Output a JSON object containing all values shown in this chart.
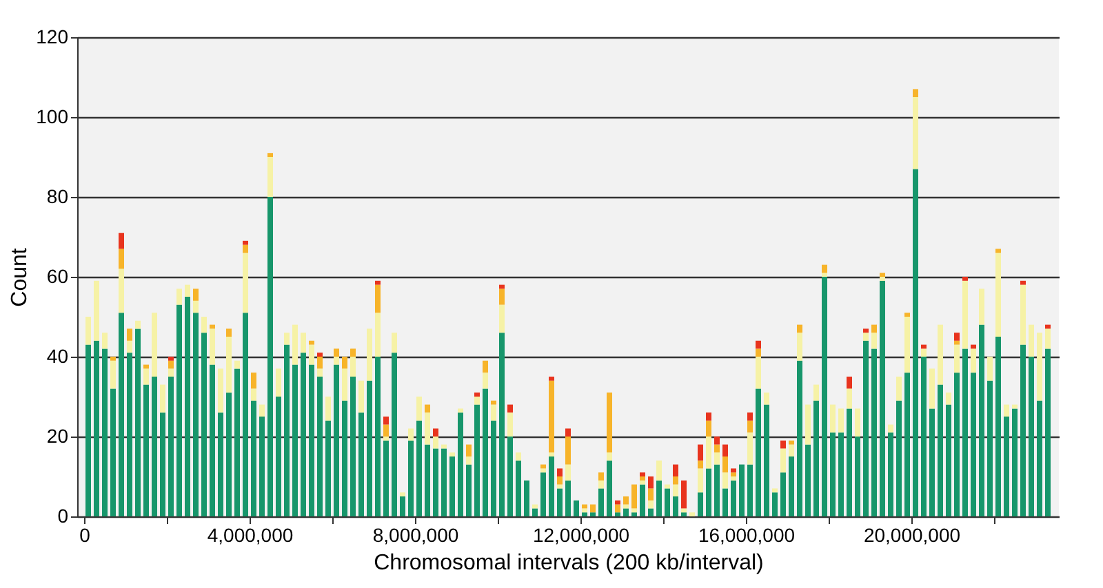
{
  "chart_data": {
    "type": "bar",
    "stacked": true,
    "xlabel": "Chromosomal intervals (200 kb/interval)",
    "ylabel": "Count",
    "x": [
      100000,
      300000,
      500000,
      700000,
      900000,
      1100000,
      1300000,
      1500000,
      1700000,
      1900000,
      2100000,
      2300000,
      2500000,
      2700000,
      2900000,
      3100000,
      3300000,
      3500000,
      3700000,
      3900000,
      4100000,
      4300000,
      4500000,
      4700000,
      4900000,
      5100000,
      5300000,
      5500000,
      5700000,
      5900000,
      6100000,
      6300000,
      6500000,
      6700000,
      6900000,
      7100000,
      7300000,
      7500000,
      7700000,
      7900000,
      8100000,
      8300000,
      8500000,
      8700000,
      8900000,
      9100000,
      9300000,
      9500000,
      9700000,
      9900000,
      10100000,
      10300000,
      10500000,
      10700000,
      10900000,
      11100000,
      11300000,
      11500000,
      11700000,
      11900000,
      12100000,
      12300000,
      12500000,
      12700000,
      12900000,
      13100000,
      13300000,
      13500000,
      13700000,
      13900000,
      14100000,
      14300000,
      14500000,
      14700000,
      14900000,
      15100000,
      15300000,
      15500000,
      15700000,
      15900000,
      16100000,
      16300000,
      16500000,
      16700000,
      16900000,
      17100000,
      17300000,
      17500000,
      17700000,
      17900000,
      18100000,
      18300000,
      18500000,
      18700000,
      18900000,
      19100000,
      19300000,
      19500000,
      19700000,
      19900000,
      20100000,
      20300000,
      20500000,
      20700000,
      20900000,
      21100000,
      21300000,
      21500000,
      21700000,
      21900000,
      22100000,
      22300000,
      22500000,
      22700000,
      22900000,
      23100000,
      23300000
    ],
    "series": [
      {
        "color": "#17966b",
        "values": [
          43,
          44,
          42,
          32,
          51,
          41,
          47,
          33,
          35,
          26,
          35,
          53,
          55,
          51,
          46,
          38,
          26,
          31,
          37,
          51,
          29,
          25,
          80,
          30,
          43,
          38,
          41,
          38,
          35,
          24,
          38,
          29,
          35,
          26,
          34,
          40,
          19,
          41,
          5,
          19,
          24,
          18,
          17,
          17,
          15,
          26,
          13,
          28,
          32,
          24,
          46,
          20,
          14,
          9,
          2,
          11,
          15,
          7,
          9,
          4,
          1,
          1,
          7,
          14,
          1,
          2,
          1,
          8,
          2,
          9,
          7,
          5,
          1,
          null,
          6,
          12,
          13,
          7,
          9,
          13,
          13,
          32,
          28,
          6,
          11,
          15,
          39,
          18,
          29,
          60,
          21,
          21,
          27,
          20,
          44,
          42,
          59,
          21,
          29,
          36,
          87,
          40,
          27,
          33,
          28,
          36,
          42,
          36,
          48,
          34,
          45,
          25,
          27,
          43,
          40,
          29,
          42
        ]
      },
      {
        "color": "#f6f2a6",
        "values": [
          7,
          15,
          4,
          7,
          11,
          3,
          2,
          4,
          16,
          7,
          2,
          4,
          3,
          3,
          4,
          9,
          11,
          14,
          2,
          15,
          3,
          3,
          10,
          7,
          3,
          10,
          5,
          5,
          2,
          6,
          2,
          8,
          5,
          8,
          13,
          11,
          1,
          5,
          1,
          3,
          6,
          8,
          3,
          1,
          1,
          1,
          2,
          2,
          4,
          4,
          7,
          6,
          2,
          null,
          1,
          1,
          1,
          1,
          4,
          null,
          1,
          null,
          2,
          2,
          null,
          1,
          1,
          1,
          2,
          5,
          1,
          3,
          1,
          1,
          6,
          8,
          3,
          4,
          1,
          null,
          8,
          8,
          3,
          1,
          6,
          3,
          7,
          10,
          4,
          1,
          7,
          6,
          5,
          7,
          2,
          4,
          1,
          2,
          6,
          14,
          18,
          2,
          10,
          15,
          3,
          7,
          17,
          6,
          9,
          6,
          21,
          3,
          1,
          15,
          8,
          17,
          5
        ]
      },
      {
        "color": "#f7b42a",
        "values": [
          null,
          null,
          null,
          1,
          5,
          3,
          null,
          1,
          null,
          null,
          2,
          null,
          null,
          3,
          null,
          1,
          null,
          2,
          null,
          2,
          4,
          null,
          1,
          null,
          null,
          null,
          null,
          1,
          3,
          null,
          2,
          3,
          2,
          null,
          null,
          7,
          3,
          null,
          null,
          null,
          null,
          2,
          null,
          null,
          null,
          null,
          3,
          null,
          3,
          1,
          4,
          null,
          null,
          null,
          null,
          1,
          18,
          2,
          7,
          null,
          1,
          2,
          2,
          15,
          2,
          2,
          6,
          1,
          3,
          null,
          null,
          2,
          null,
          null,
          2,
          4,
          2,
          4,
          1,
          null,
          3,
          2,
          null,
          null,
          null,
          1,
          2,
          null,
          null,
          2,
          null,
          null,
          null,
          null,
          null,
          2,
          1,
          null,
          null,
          1,
          2,
          null,
          null,
          null,
          null,
          1,
          null,
          null,
          null,
          null,
          1,
          null,
          null,
          null,
          null,
          null,
          null
        ]
      },
      {
        "color": "#e8341e",
        "values": [
          null,
          null,
          null,
          null,
          4,
          null,
          null,
          null,
          null,
          null,
          1,
          null,
          null,
          null,
          null,
          null,
          null,
          null,
          null,
          1,
          null,
          null,
          null,
          null,
          null,
          null,
          null,
          null,
          1,
          null,
          null,
          null,
          null,
          null,
          null,
          1,
          2,
          null,
          null,
          null,
          null,
          null,
          2,
          null,
          null,
          null,
          null,
          1,
          null,
          null,
          1,
          2,
          null,
          null,
          null,
          null,
          1,
          2,
          2,
          null,
          null,
          null,
          null,
          null,
          1,
          null,
          null,
          1,
          3,
          null,
          null,
          3,
          7,
          null,
          4,
          2,
          2,
          3,
          1,
          null,
          2,
          2,
          null,
          null,
          2,
          null,
          null,
          null,
          null,
          null,
          null,
          null,
          3,
          null,
          1,
          null,
          null,
          null,
          null,
          null,
          null,
          1,
          null,
          null,
          null,
          2,
          1,
          1,
          null,
          null,
          null,
          null,
          null,
          1,
          null,
          null,
          1
        ]
      }
    ],
    "xlim": [
      0,
      23400000
    ],
    "xticks": [
      0,
      {
        "value": 2000000,
        "label": null
      },
      {
        "value": 4000000,
        "label": "4,000,000"
      },
      {
        "value": 6000000,
        "label": null
      },
      {
        "value": 8000000,
        "label": "8,000,000"
      },
      {
        "value": 10000000,
        "label": null
      },
      {
        "value": 12000000,
        "label": "12,000,000"
      },
      {
        "value": 14000000,
        "label": null
      },
      {
        "value": 16000000,
        "label": "16,000,000"
      },
      {
        "value": 18000000,
        "label": null
      },
      {
        "value": 20000000,
        "label": "20,000,000"
      },
      {
        "value": 22000000,
        "label": null
      }
    ],
    "ylim": [
      0,
      120
    ],
    "yticks": [
      0,
      20,
      40,
      60,
      80,
      100,
      120
    ],
    "grid": "y"
  }
}
